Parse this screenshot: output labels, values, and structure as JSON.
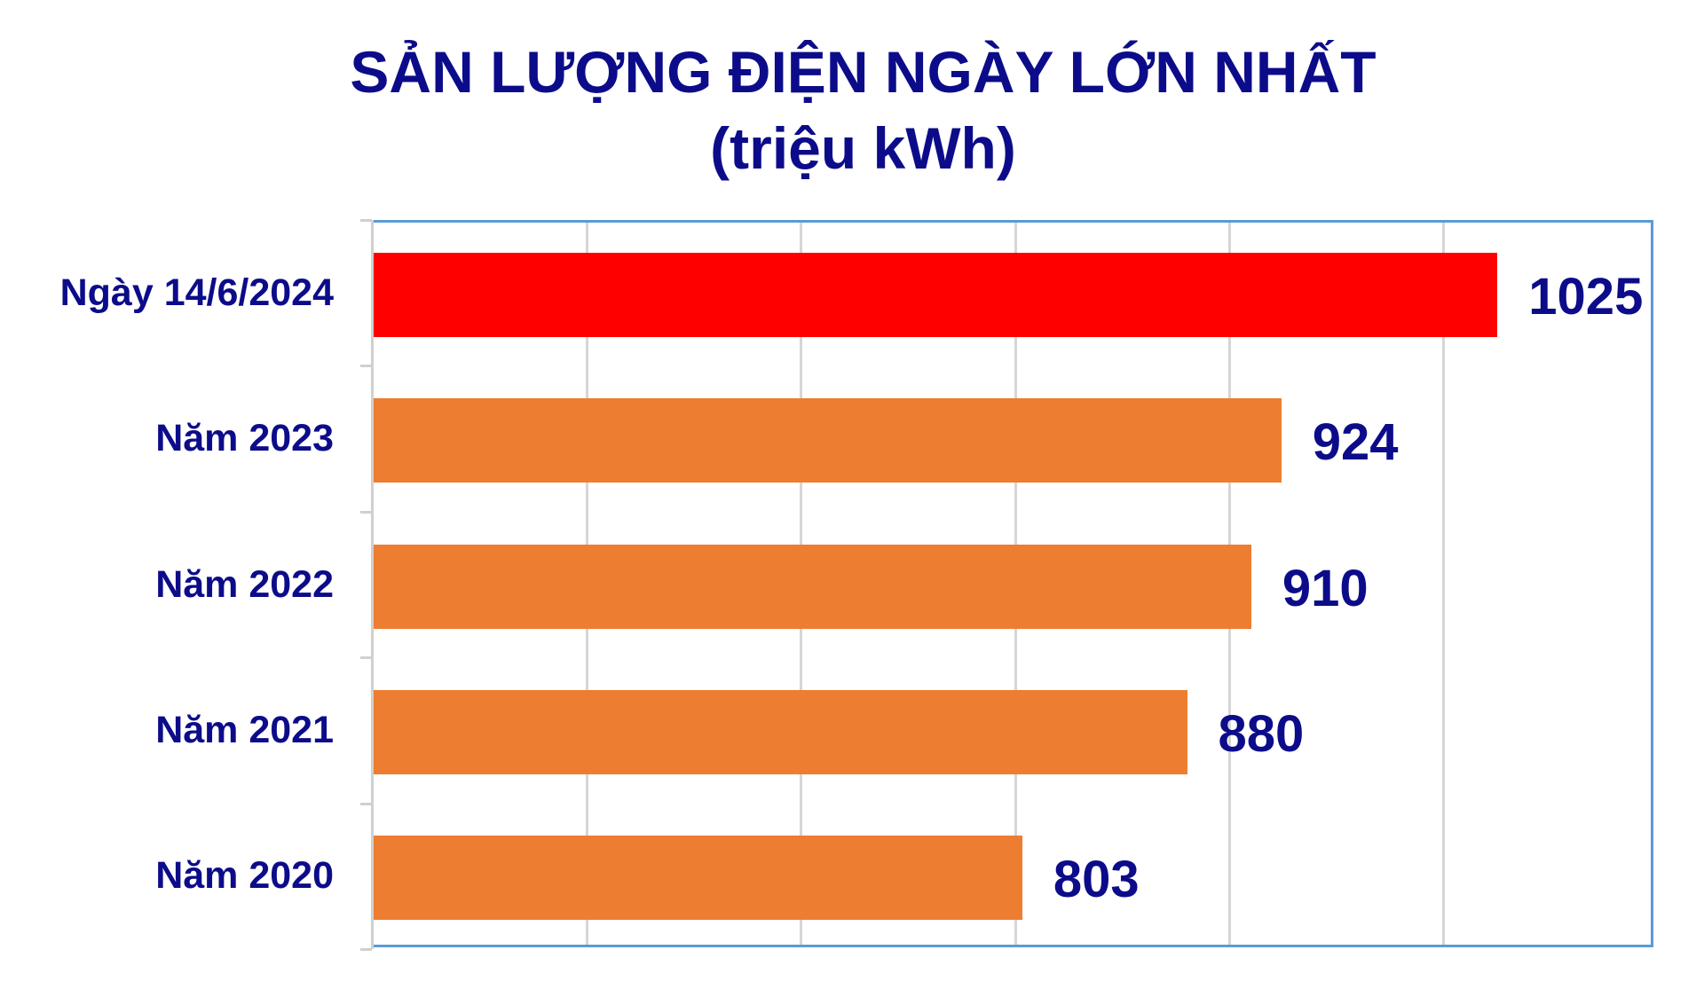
{
  "title": {
    "line1": "SẢN LƯỢNG ĐIỆN NGÀY LỚN NHẤT",
    "line2": "(triệu kWh)"
  },
  "colors": {
    "text": "#0c0c8a",
    "highlight_bar": "#ff0000",
    "bar": "#ed7d31",
    "plot_border": "#5b9bd5",
    "gridline": "#d6d6d6"
  },
  "chart_data": {
    "type": "bar",
    "orientation": "horizontal",
    "title": "SẢN LƯỢNG ĐIỆN NGÀY LỚN NHẤT (triệu kWh)",
    "xlabel": "",
    "ylabel": "",
    "categories": [
      "Ngày 14/6/2024",
      "Năm 2023",
      "Năm 2022",
      "Năm 2021",
      "Năm 2020"
    ],
    "values": [
      1025,
      924,
      910,
      880,
      803
    ],
    "bar_colors": [
      "#ff0000",
      "#ed7d31",
      "#ed7d31",
      "#ed7d31",
      "#ed7d31"
    ],
    "xlim": [
      500,
      1100
    ],
    "x_gridlines": [
      500,
      600,
      700,
      800,
      900,
      1000,
      1100
    ],
    "x_tick_labels_visible": false,
    "grid": true,
    "data_labels": true,
    "legend": null,
    "unit": "triệu kWh"
  }
}
